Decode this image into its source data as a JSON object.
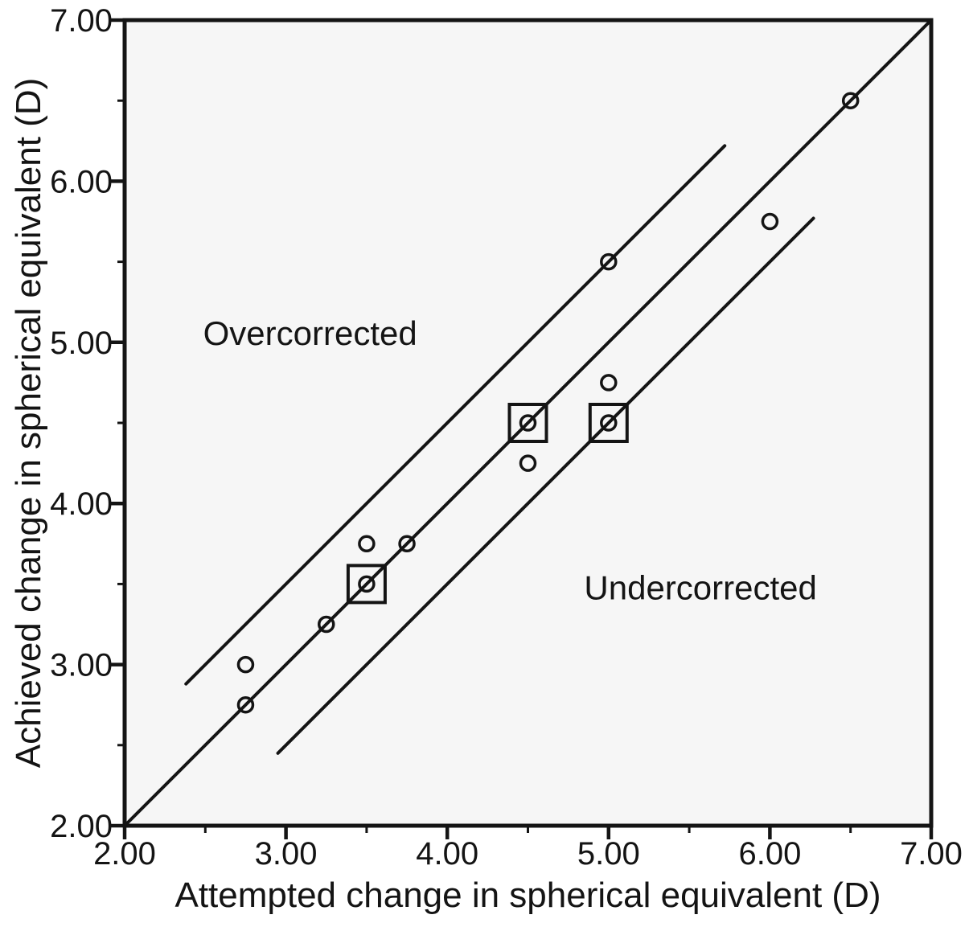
{
  "chart_data": {
    "type": "scatter",
    "title": "",
    "xlabel": "Attempted change in spherical equivalent (D)",
    "ylabel": "Achieved change in spherical equivalent (D)",
    "xlim": [
      2.0,
      7.0
    ],
    "ylim": [
      2.0,
      7.0
    ],
    "grid": false,
    "x_major_ticks": [
      2,
      3,
      4,
      5,
      6,
      7
    ],
    "x_tick_labels": [
      "2.00",
      "3.00",
      "4.00",
      "5.00",
      "6.00",
      "7.00"
    ],
    "y_major_ticks": [
      2,
      3,
      4,
      5,
      6,
      7
    ],
    "y_tick_labels": [
      "2.00",
      "3.00",
      "4.00",
      "5.00",
      "6.00",
      "7.00"
    ],
    "minor_tick_step": 0.5,
    "points": [
      {
        "x": 2.75,
        "y": 2.75,
        "marker": "circle"
      },
      {
        "x": 2.75,
        "y": 3.0,
        "marker": "circle"
      },
      {
        "x": 3.25,
        "y": 3.25,
        "marker": "circle"
      },
      {
        "x": 3.5,
        "y": 3.5,
        "marker": "circle_in_square"
      },
      {
        "x": 3.5,
        "y": 3.75,
        "marker": "circle"
      },
      {
        "x": 3.75,
        "y": 3.75,
        "marker": "circle"
      },
      {
        "x": 4.5,
        "y": 4.25,
        "marker": "circle"
      },
      {
        "x": 4.5,
        "y": 4.5,
        "marker": "circle_in_square"
      },
      {
        "x": 5.0,
        "y": 4.5,
        "marker": "circle_in_square"
      },
      {
        "x": 5.0,
        "y": 4.75,
        "marker": "circle"
      },
      {
        "x": 5.0,
        "y": 5.5,
        "marker": "circle"
      },
      {
        "x": 6.0,
        "y": 5.75,
        "marker": "circle"
      },
      {
        "x": 6.5,
        "y": 6.5,
        "marker": "circle"
      }
    ],
    "lines": [
      {
        "name": "identity-line",
        "x1": 2.0,
        "y1": 2.0,
        "x2": 7.0,
        "y2": 7.0
      },
      {
        "name": "upper-tolerance-line",
        "x1": 2.38,
        "y1": 2.88,
        "x2": 5.72,
        "y2": 6.22
      },
      {
        "name": "lower-tolerance-line",
        "x1": 2.95,
        "y1": 2.45,
        "x2": 6.27,
        "y2": 5.77
      }
    ],
    "annotations": [
      {
        "text": "Overcorrected",
        "x": 3.15,
        "y": 5.06
      },
      {
        "text": "Undercorrected",
        "x": 5.57,
        "y": 3.48
      }
    ],
    "colors": {
      "ink": "#141414",
      "plot_bg": "#f6f6f6",
      "page_bg": "#ffffff"
    }
  }
}
